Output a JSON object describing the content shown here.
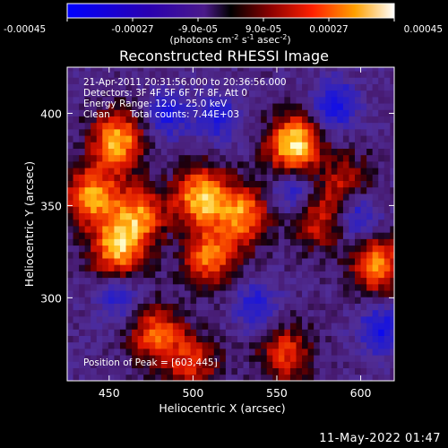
{
  "chart_data": {
    "type": "heatmap",
    "title": "Reconstructed RHESSI Image",
    "xlabel": "Heliocentric X (arcsec)",
    "ylabel": "Heliocentric Y (arcsec)",
    "xlim": [
      425,
      620
    ],
    "ylim": [
      255,
      425
    ],
    "x_ticks": [
      "450",
      "500",
      "550",
      "600"
    ],
    "y_ticks": [
      "300",
      "350",
      "400"
    ],
    "colorbar": {
      "ticks": [
        "-0.00045",
        "-0.00027",
        "-9.0e-05",
        "9.0e-05",
        "0.00027",
        "0.00045"
      ],
      "range": [
        -0.00045,
        0.00045
      ],
      "unit_prefix": "(photons cm",
      "unit_sup1": "-2",
      "unit_mid1": " s",
      "unit_sup2": "-1",
      "unit_mid2": " asec",
      "unit_sup3": "-2",
      "unit_suffix": ")"
    },
    "annotations": {
      "time_range": "21-Apr-2011 20:31:56.000 to 20:36:56.000",
      "detectors": "Detectors: 3F 4F 5F 6F 7F 8F, Att 0",
      "energy_range": "Energy Range: 12.0 - 25.0 keV",
      "clean": "Clean",
      "total_counts": "Total counts: 7.44E+03",
      "peak": "Position of Peak = [603,445]"
    },
    "bright_regions": [
      {
        "x": 455,
        "y": 385,
        "relative_intensity": 0.85
      },
      {
        "x": 468,
        "y": 345,
        "relative_intensity": 0.7
      },
      {
        "x": 505,
        "y": 355,
        "relative_intensity": 0.9
      },
      {
        "x": 530,
        "y": 345,
        "relative_intensity": 0.75
      },
      {
        "x": 560,
        "y": 383,
        "relative_intensity": 1.0
      },
      {
        "x": 455,
        "y": 327,
        "relative_intensity": 0.85
      },
      {
        "x": 510,
        "y": 322,
        "relative_intensity": 0.7
      },
      {
        "x": 440,
        "y": 355,
        "relative_intensity": 0.8
      },
      {
        "x": 478,
        "y": 280,
        "relative_intensity": 0.65
      },
      {
        "x": 610,
        "y": 318,
        "relative_intensity": 0.75
      },
      {
        "x": 555,
        "y": 270,
        "relative_intensity": 0.55
      },
      {
        "x": 500,
        "y": 265,
        "relative_intensity": 0.5
      },
      {
        "x": 575,
        "y": 342,
        "relative_intensity": 0.5
      },
      {
        "x": 592,
        "y": 362,
        "relative_intensity": 0.45
      }
    ],
    "dark_regions": [
      {
        "x": 485,
        "y": 400,
        "relative_intensity": -0.5
      },
      {
        "x": 515,
        "y": 398,
        "relative_intensity": -0.45
      },
      {
        "x": 585,
        "y": 405,
        "relative_intensity": -0.55
      },
      {
        "x": 598,
        "y": 345,
        "relative_intensity": -0.5
      },
      {
        "x": 560,
        "y": 357,
        "relative_intensity": -0.4
      },
      {
        "x": 612,
        "y": 283,
        "relative_intensity": -0.55
      },
      {
        "x": 538,
        "y": 295,
        "relative_intensity": -0.45
      },
      {
        "x": 455,
        "y": 300,
        "relative_intensity": -0.35
      }
    ]
  },
  "footer": {
    "timestamp": "11-May-2022 01:47"
  }
}
